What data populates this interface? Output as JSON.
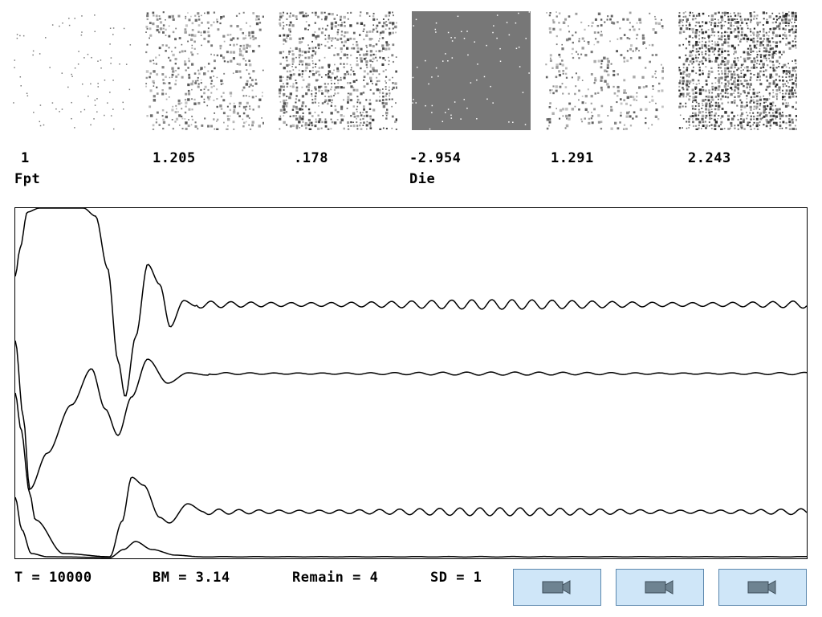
{
  "panels": [
    {
      "value": "1",
      "sublabel": "Fpt",
      "density": 0.06,
      "tone": "#7a7a7a",
      "kind": "specks"
    },
    {
      "value": "1.205",
      "sublabel": "",
      "density": 0.34,
      "tone": "#555555",
      "kind": "texture"
    },
    {
      "value": ".178",
      "sublabel": "",
      "density": 0.55,
      "tone": "#3a3a3a",
      "kind": "texture"
    },
    {
      "value": "-2.954",
      "sublabel": "Die",
      "density": 0.05,
      "tone": "#ffffff",
      "kind": "inverted"
    },
    {
      "value": "1.291",
      "sublabel": "",
      "density": 0.26,
      "tone": "#555555",
      "kind": "texture"
    },
    {
      "value": "2.243",
      "sublabel": "",
      "density": 0.78,
      "tone": "#222222",
      "kind": "texture"
    }
  ],
  "status": {
    "t": "T = 10000",
    "bm": "BM = 3.14",
    "remain": "Remain = 4",
    "sd": "SD = 1"
  },
  "buttons": [
    {
      "icon": "video-camera-icon"
    },
    {
      "icon": "video-camera-icon"
    },
    {
      "icon": "video-camera-icon"
    }
  ],
  "colors": {
    "button_fill": "#cfe6f8",
    "button_border": "#5b87ad",
    "camera_icon": "#6e8391"
  }
}
